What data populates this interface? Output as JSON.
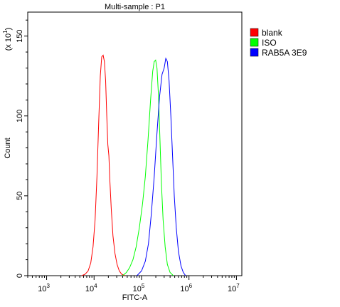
{
  "chart_data": {
    "type": "line",
    "title": "Multi-sample : P1",
    "xlabel": "FITC-A",
    "ylabel": "Count",
    "y_multiplier_label": "(x 10",
    "y_multiplier_exp": "1",
    "x_scale": "log",
    "xlim": [
      400,
      13000000
    ],
    "ylim": [
      0,
      165
    ],
    "x_ticks": [
      {
        "value": 1000,
        "base": "10",
        "exp": "3"
      },
      {
        "value": 10000,
        "base": "10",
        "exp": "4"
      },
      {
        "value": 100000,
        "base": "10",
        "exp": "5"
      },
      {
        "value": 1000000,
        "base": "10",
        "exp": "6"
      },
      {
        "value": 10000000,
        "base": "10",
        "exp": "7"
      }
    ],
    "y_ticks": [
      {
        "value": 0,
        "label": "0"
      },
      {
        "value": 50,
        "label": "50"
      },
      {
        "value": 100,
        "label": "100"
      },
      {
        "value": 150,
        "label": "150"
      }
    ],
    "grid": false,
    "legend_position": "right",
    "series": [
      {
        "name": "blank",
        "color": "#ff0000",
        "points": [
          [
            5500,
            0
          ],
          [
            6500,
            1
          ],
          [
            7500,
            3
          ],
          [
            8500,
            8
          ],
          [
            9500,
            18
          ],
          [
            10500,
            35
          ],
          [
            11500,
            62
          ],
          [
            12500,
            95
          ],
          [
            13500,
            125
          ],
          [
            14500,
            137
          ],
          [
            15500,
            138
          ],
          [
            16500,
            134
          ],
          [
            17500,
            122
          ],
          [
            18500,
            100
          ],
          [
            19500,
            82
          ],
          [
            20500,
            75
          ],
          [
            21500,
            60
          ],
          [
            23000,
            42
          ],
          [
            25000,
            25
          ],
          [
            27500,
            14
          ],
          [
            30500,
            7
          ],
          [
            34000,
            3
          ],
          [
            38000,
            1
          ],
          [
            45000,
            0
          ]
        ]
      },
      {
        "name": "ISO",
        "color": "#00ff00",
        "points": [
          [
            40000,
            0
          ],
          [
            48000,
            2
          ],
          [
            56000,
            5
          ],
          [
            66000,
            10
          ],
          [
            77000,
            18
          ],
          [
            90000,
            30
          ],
          [
            105000,
            45
          ],
          [
            120000,
            62
          ],
          [
            137000,
            85
          ],
          [
            155000,
            110
          ],
          [
            172000,
            128
          ],
          [
            185000,
            134
          ],
          [
            198000,
            135
          ],
          [
            212000,
            130
          ],
          [
            228000,
            112
          ],
          [
            245000,
            85
          ],
          [
            262000,
            58
          ],
          [
            285000,
            35
          ],
          [
            315000,
            18
          ],
          [
            350000,
            7
          ],
          [
            400000,
            2
          ],
          [
            470000,
            0
          ]
        ]
      },
      {
        "name": "RAB5A  3E9",
        "color": "#0000ff",
        "points": [
          [
            80000,
            0
          ],
          [
            100000,
            3
          ],
          [
            120000,
            9
          ],
          [
            140000,
            20
          ],
          [
            160000,
            38
          ],
          [
            185000,
            62
          ],
          [
            210000,
            88
          ],
          [
            240000,
            112
          ],
          [
            270000,
            126
          ],
          [
            300000,
            130
          ],
          [
            325000,
            136
          ],
          [
            350000,
            134
          ],
          [
            380000,
            122
          ],
          [
            415000,
            100
          ],
          [
            450000,
            75
          ],
          [
            490000,
            50
          ],
          [
            540000,
            30
          ],
          [
            600000,
            15
          ],
          [
            680000,
            6
          ],
          [
            760000,
            2
          ],
          [
            850000,
            0
          ]
        ]
      }
    ]
  }
}
